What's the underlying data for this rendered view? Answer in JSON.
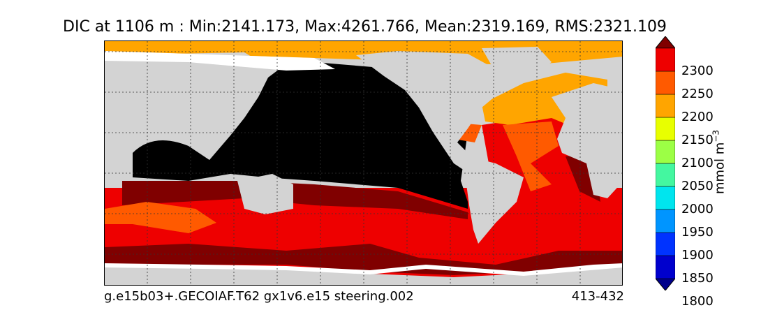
{
  "title": "DIC at 1106 m : Min:2141.173, Max:4261.766, Mean:2319.169, RMS:2321.109",
  "footer": {
    "left": "g.e15b03+.GECOIAF.T62 gx1v6.e15 steering.002",
    "right": "413-432"
  },
  "colorbar": {
    "unit_base": "mmol m",
    "unit_exp": "−3",
    "ticks": [
      "2300",
      "2250",
      "2200",
      "2150",
      "2100",
      "2050",
      "2000",
      "1950",
      "1900",
      "1850",
      "1800"
    ],
    "bins": [
      {
        "range": "below 1800",
        "color": "#00008b"
      },
      {
        "range": "1800-1850",
        "color": "#0000cd"
      },
      {
        "range": "1850-1900",
        "color": "#0033ff"
      },
      {
        "range": "1900-1950",
        "color": "#0095ff"
      },
      {
        "range": "1950-2000",
        "color": "#00e5ee"
      },
      {
        "range": "2000-2050",
        "color": "#44f7a0"
      },
      {
        "range": "2050-2100",
        "color": "#9cff45"
      },
      {
        "range": "2100-2150",
        "color": "#e8ff00"
      },
      {
        "range": "2150-2200",
        "color": "#ffa500"
      },
      {
        "range": "2200-2250",
        "color": "#ff5a00"
      },
      {
        "range": "2250-2300",
        "color": "#ee0000"
      },
      {
        "range": "above 2300",
        "color": "#800000"
      }
    ]
  },
  "map": {
    "projection": "cylindrical equidistant",
    "land_color": "#d3d3d3",
    "missing_color": "#ffffff",
    "pacific_color": "#000000",
    "graticule": "dotted"
  }
}
